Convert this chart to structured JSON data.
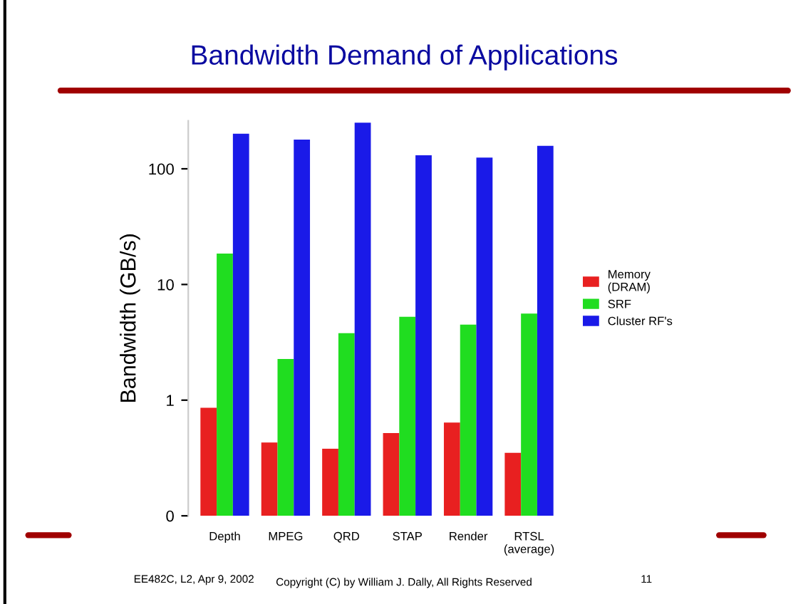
{
  "chart_data": {
    "type": "bar",
    "title": "Bandwidth Demand of Applications",
    "ylabel": "Bandwidth (GB/s)",
    "categories": [
      "Depth",
      "MPEG",
      "QRD",
      "STAP",
      "Render",
      "RTSL\n(average)"
    ],
    "series": [
      {
        "name": "Memory\n(DRAM)",
        "color": "#e82020",
        "values": [
          0.86,
          0.43,
          0.38,
          0.52,
          0.64,
          0.35
        ]
      },
      {
        "name": "SRF",
        "color": "#20dd20",
        "values": [
          18.5,
          2.27,
          3.8,
          5.25,
          4.5,
          5.6
        ]
      },
      {
        "name": "Cluster RF's",
        "color": "#1a1ae8",
        "values": [
          201,
          179,
          250,
          131,
          125,
          158
        ]
      }
    ],
    "log": true,
    "ylim": [
      0.1,
      260
    ],
    "yticks": [
      {
        "value": 0.1,
        "label": "0"
      },
      1,
      10,
      100
    ],
    "grid": false,
    "legend": "right",
    "annotations": [
      "EE482C, L2, Apr 9, 2002",
      "Copyright (C) by William J. Dally, All Rights Reserved",
      "11"
    ]
  }
}
